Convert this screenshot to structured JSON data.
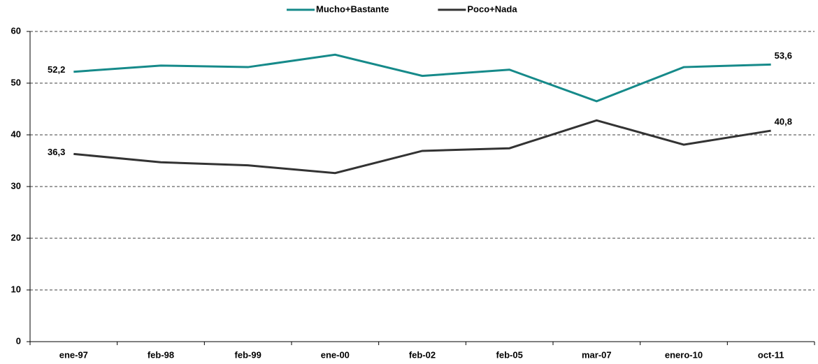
{
  "chart_data": {
    "type": "line",
    "categories": [
      "ene-97",
      "feb-98",
      "feb-99",
      "ene-00",
      "feb-02",
      "feb-05",
      "mar-07",
      "enero-10",
      "oct-11"
    ],
    "series": [
      {
        "name": "Mucho+Bastante",
        "color": "#168a8a",
        "values": [
          52.2,
          53.4,
          53.1,
          55.5,
          51.4,
          52.6,
          46.5,
          53.1,
          53.6
        ],
        "value_labels": [
          "52,2",
          null,
          null,
          null,
          null,
          null,
          null,
          null,
          "53,6"
        ]
      },
      {
        "name": "Poco+Nada",
        "color": "#333333",
        "values": [
          36.3,
          34.7,
          34.1,
          32.6,
          36.9,
          37.4,
          42.8,
          38.1,
          40.8
        ],
        "value_labels": [
          "36,3",
          null,
          null,
          null,
          null,
          null,
          null,
          null,
          "40,8"
        ]
      }
    ],
    "ylim": [
      0,
      60
    ],
    "yticks": [
      0,
      10,
      20,
      30,
      40,
      50,
      60
    ],
    "grid": true,
    "legend": "top"
  }
}
